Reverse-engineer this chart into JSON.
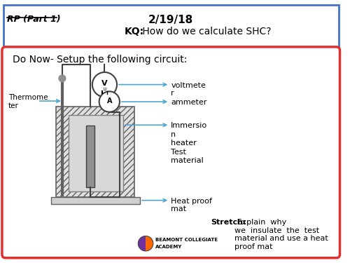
{
  "title_left": "RP (Part 1)",
  "title_center": "2/19/18",
  "title_sub": "KQ: How do we calculate SHC?",
  "do_now_text": "Do Now- Setup the following circuit:",
  "labels": {
    "thermometer": "Thermome\nter",
    "voltmeter": "voltmete\nr",
    "ammeter": "ammeter",
    "immersion": "Immersio\nn\nheater\nTest\nmaterial",
    "heat_proof": "Heat proof\nmat"
  },
  "stretch_bold": "Stretch:",
  "stretch_text": " Explain  why\nwe  insulate  the  test\nmaterial and use a heat\nproof mat",
  "bg_color": "#ffffff",
  "header_border": "#4472c4",
  "red_box_border": "#e03030",
  "arrow_color": "#4da6d4",
  "logo_text1": "BEAMONT COLLEGIATE",
  "logo_text2": "ACADEMY"
}
